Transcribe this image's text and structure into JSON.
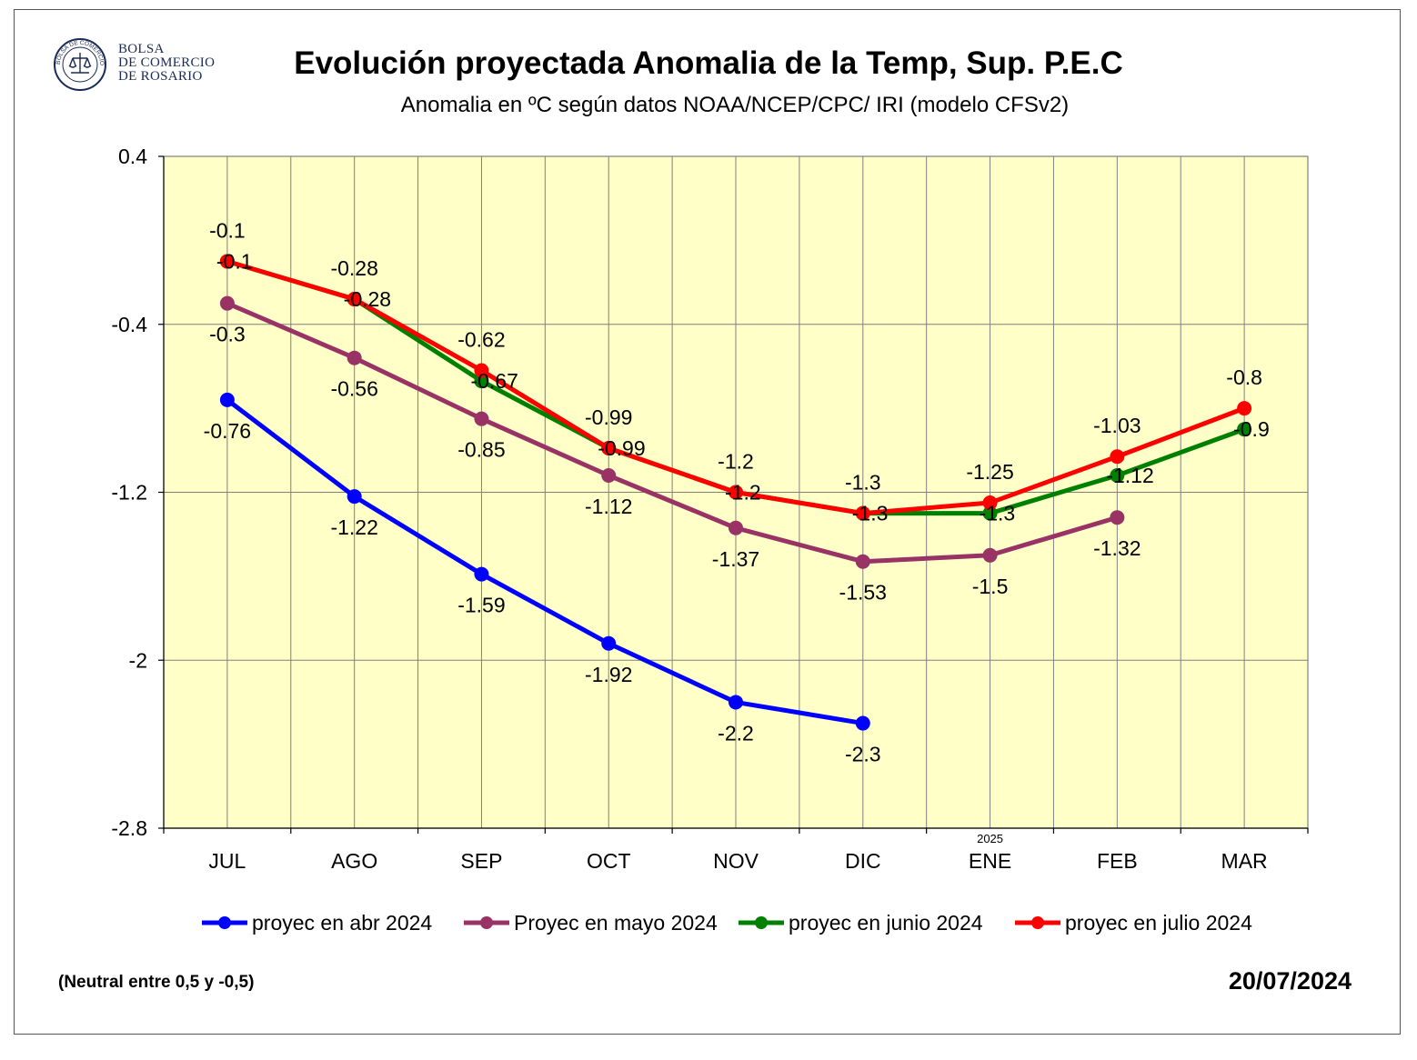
{
  "header": {
    "org_line1": "BOLSA",
    "org_line2": "DE COMERCIO",
    "org_line3": "DE ROSARIO",
    "seal_text": "BOLSA DE COMERCIO DE ROSARIO"
  },
  "footer": {
    "neutral_note": "(Neutral entre 0,5 y -0,5)",
    "date": "20/07/2024"
  },
  "colors": {
    "plot_bg": "#FFFFC8",
    "grid": "#808080",
    "series": [
      "#0000FF",
      "#993366",
      "#008000",
      "#FF0000"
    ]
  },
  "chart_data": {
    "type": "line",
    "title": "Evolución proyectada Anomalia de la Temp, Sup.  P.E.C",
    "subtitle": "Anomalia en ºC según datos NOAA/NCEP/CPC/ IRI (modelo CFSv2)",
    "categories": [
      "JUL",
      "AGO",
      "SEP",
      "OCT",
      "NOV",
      "DIC",
      "ENE",
      "FEB",
      "MAR"
    ],
    "category_annotation": {
      "category": "ENE",
      "text": "2025"
    },
    "ylim": [
      -2.8,
      0.4
    ],
    "yticks": [
      0.4,
      -0.4,
      -1.2,
      -2,
      -2.8
    ],
    "ytick_labels": [
      "0.4",
      "-0.4",
      "-1.2",
      "-2",
      "-2.8"
    ],
    "grid": true,
    "legend_position": "bottom",
    "series": [
      {
        "name": "proyec en abr 2024",
        "color": "#0000FF",
        "values": [
          -0.76,
          -1.22,
          -1.59,
          -1.92,
          -2.2,
          -2.3,
          null,
          null,
          null
        ],
        "label_pos": "below"
      },
      {
        "name": "Proyec en mayo 2024",
        "color": "#993366",
        "values": [
          -0.3,
          -0.56,
          -0.85,
          -1.12,
          -1.37,
          -1.53,
          -1.5,
          -1.32,
          null
        ],
        "label_pos": "below"
      },
      {
        "name": "proyec en  junio 2024",
        "color": "#008000",
        "values": [
          -0.1,
          -0.28,
          -0.67,
          -0.99,
          -1.2,
          -1.3,
          -1.3,
          -1.12,
          -0.9
        ],
        "label_pos": "right"
      },
      {
        "name": "proyec en julio 2024",
        "color": "#FF0000",
        "values": [
          -0.1,
          -0.28,
          -0.62,
          -0.99,
          -1.2,
          -1.3,
          -1.25,
          -1.03,
          -0.8
        ],
        "label_pos": "above"
      }
    ]
  }
}
